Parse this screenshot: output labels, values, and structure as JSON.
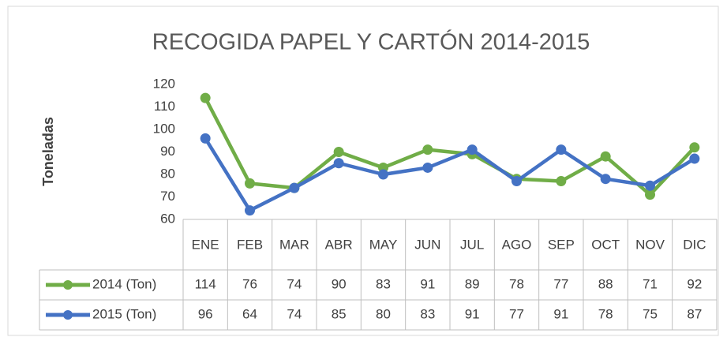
{
  "chart_data": {
    "type": "line",
    "title": "RECOGIDA PAPEL Y CARTÓN 2014-2015",
    "ylabel": "Toneladas",
    "categories": [
      "ENE",
      "FEB",
      "MAR",
      "ABR",
      "MAY",
      "JUN",
      "JUL",
      "AGO",
      "SEP",
      "OCT",
      "NOV",
      "DIC"
    ],
    "series": [
      {
        "name": "2014 (Ton)",
        "color": "#70ad47",
        "values": [
          114,
          76,
          74,
          90,
          83,
          91,
          89,
          78,
          77,
          88,
          71,
          92
        ]
      },
      {
        "name": "2015 (Ton)",
        "color": "#4472c4",
        "values": [
          96,
          64,
          74,
          85,
          80,
          83,
          91,
          77,
          91,
          78,
          75,
          87
        ]
      }
    ],
    "ylim": [
      60,
      120
    ],
    "yticks": [
      60,
      70,
      80,
      90,
      100,
      110,
      120
    ],
    "grid": false
  }
}
